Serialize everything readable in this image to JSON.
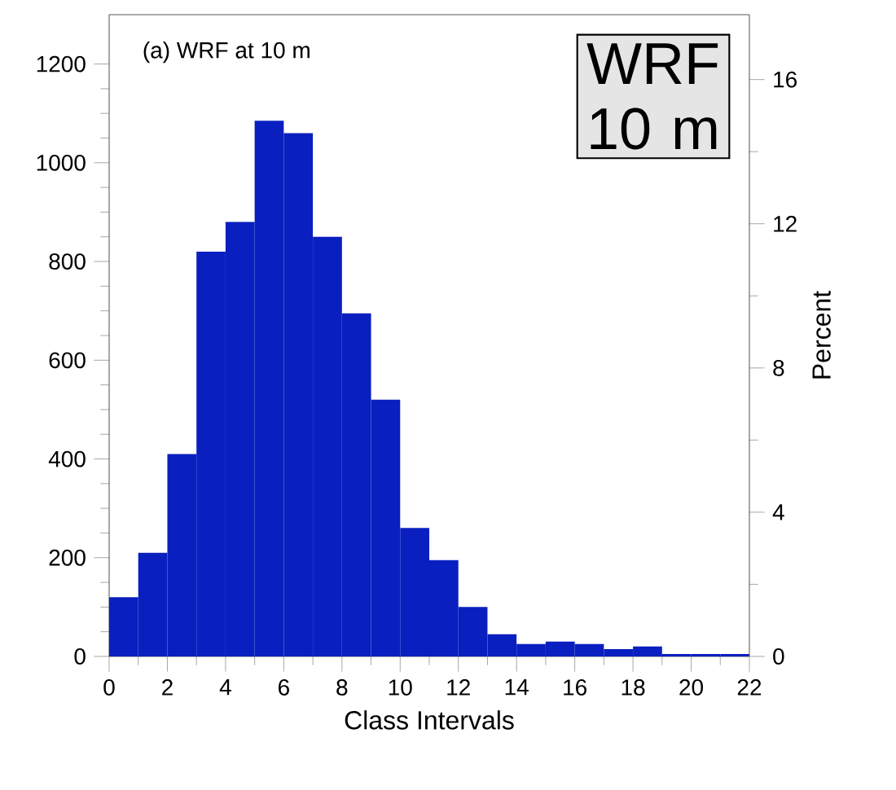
{
  "chart_data": {
    "type": "histogram",
    "title": "(a) WRF at 10 m",
    "xlabel": "Class Intervals",
    "y2label": "Percent",
    "bins": [
      0,
      1,
      2,
      3,
      4,
      5,
      6,
      7,
      8,
      9,
      10,
      11,
      12,
      13,
      14,
      15,
      16,
      17,
      18,
      19,
      20,
      21,
      22
    ],
    "values": [
      120,
      210,
      410,
      820,
      880,
      1085,
      1060,
      850,
      695,
      520,
      260,
      195,
      100,
      45,
      25,
      30,
      25,
      15,
      20,
      5,
      5,
      5
    ],
    "color": "#0a1fbf",
    "xlim": [
      0,
      22
    ],
    "xticks": [
      0,
      2,
      4,
      6,
      8,
      10,
      12,
      14,
      16,
      18,
      20,
      22
    ],
    "ylim": [
      0,
      1300
    ],
    "yticks": [
      0,
      200,
      400,
      600,
      800,
      1000,
      1200
    ],
    "y2lim": [
      0,
      17.8
    ],
    "y2ticks": [
      0,
      4,
      8,
      12,
      16
    ],
    "annotations": [
      "WRF 10 m"
    ]
  }
}
